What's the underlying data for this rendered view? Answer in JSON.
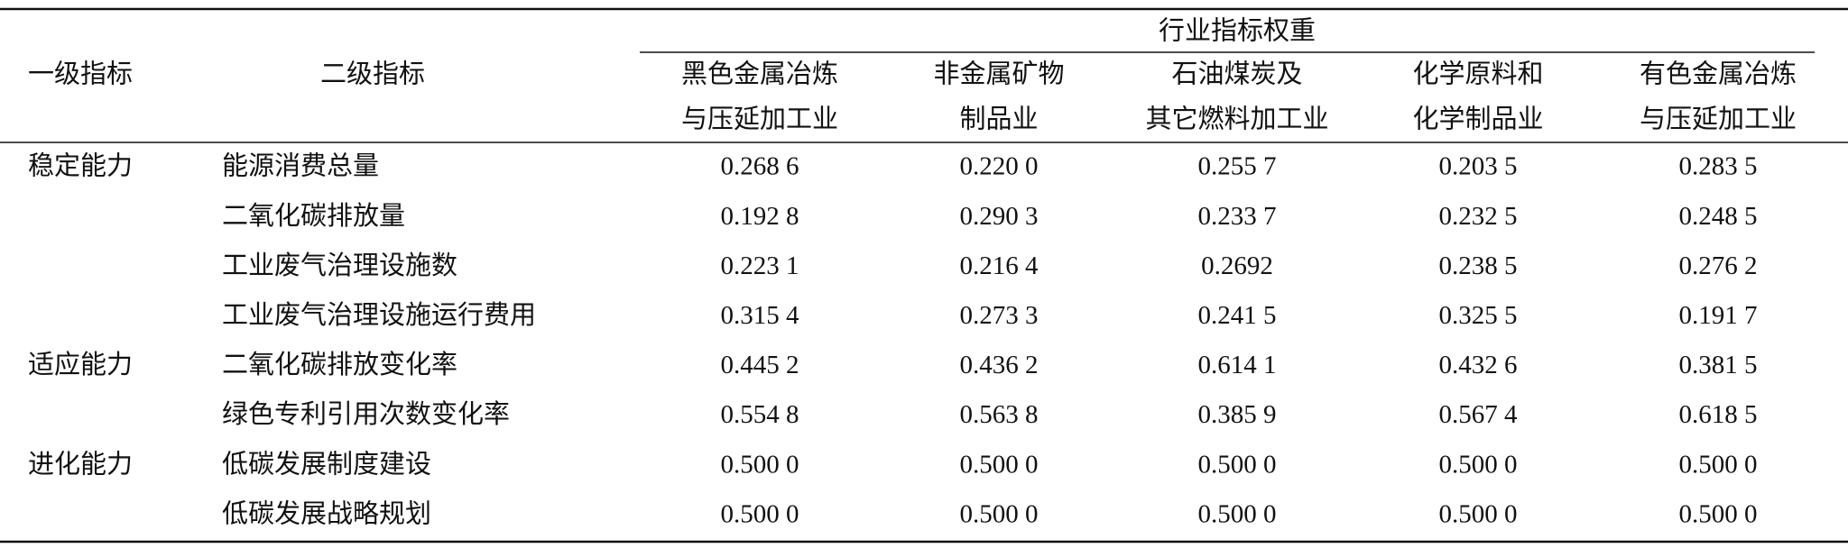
{
  "header": {
    "group": "行业指标权重",
    "level1": "一级指标",
    "level2": "二级指标",
    "industries": [
      [
        "黑色金属冶炼",
        "与压延加工业"
      ],
      [
        "非金属矿物",
        "制品业"
      ],
      [
        "石油煤炭及",
        "其它燃料加工业"
      ],
      [
        "化学原料和",
        "化学制品业"
      ],
      [
        "有色金属冶炼",
        "与压延加工业"
      ]
    ]
  },
  "rows": [
    {
      "level1": "稳定能力",
      "level2": "能源消费总量",
      "values": [
        "0.268 6",
        "0.220 0",
        "0.255 7",
        "0.203 5",
        "0.283 5"
      ]
    },
    {
      "level2": "二氧化碳排放量",
      "values": [
        "0.192 8",
        "0.290 3",
        "0.233 7",
        "0.232 5",
        "0.248 5"
      ]
    },
    {
      "level2": "工业废气治理设施数",
      "values": [
        "0.223 1",
        "0.216 4",
        "0.2692",
        "0.238 5",
        "0.276 2"
      ]
    },
    {
      "level2": "工业废气治理设施运行费用",
      "values": [
        "0.315 4",
        "0.273 3",
        "0.241 5",
        "0.325 5",
        "0.191 7"
      ]
    },
    {
      "level1": "适应能力",
      "level2": "二氧化碳排放变化率",
      "values": [
        "0.445 2",
        "0.436 2",
        "0.614 1",
        "0.432 6",
        "0.381 5"
      ]
    },
    {
      "level2": "绿色专利引用次数变化率",
      "values": [
        "0.554 8",
        "0.563 8",
        "0.385 9",
        "0.567 4",
        "0.618 5"
      ]
    },
    {
      "level1": "进化能力",
      "level2": "低碳发展制度建设",
      "values": [
        "0.500 0",
        "0.500 0",
        "0.500 0",
        "0.500 0",
        "0.500 0"
      ]
    },
    {
      "level2": "低碳发展战略规划",
      "values": [
        "0.500 0",
        "0.500 0",
        "0.500 0",
        "0.500 0",
        "0.500 0"
      ]
    }
  ]
}
